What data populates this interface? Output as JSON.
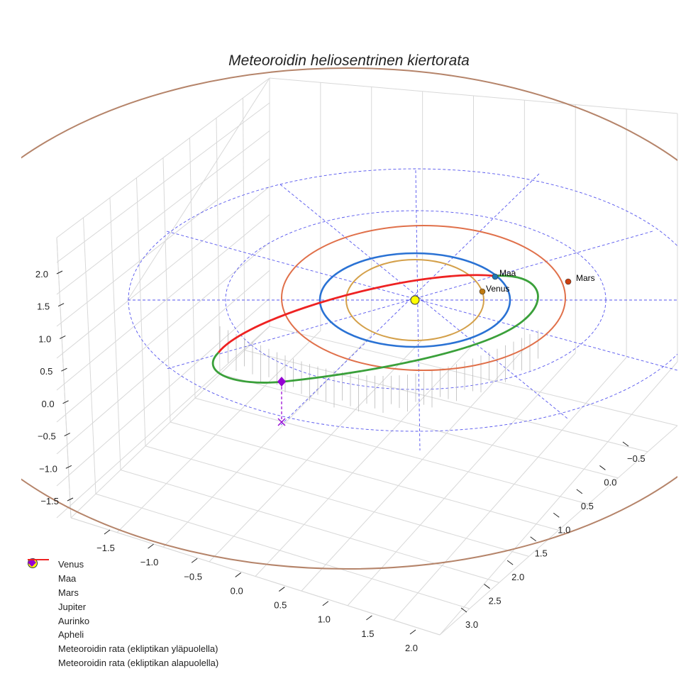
{
  "chart_data": {
    "type": "line3d",
    "title": "Meteoroidin heliosentrinen kiertorata",
    "x_ticks": [
      "−1.5",
      "−1.0",
      "−0.5",
      "0.0",
      "0.5",
      "1.0",
      "1.5",
      "2.0"
    ],
    "y_ticks": [
      "−0.5",
      "0.0",
      "0.5",
      "1.0",
      "1.5",
      "2.0",
      "2.5",
      "3.0"
    ],
    "z_ticks": [
      "2.0",
      "1.5",
      "1.0",
      "0.5",
      "0.0",
      "−0.5",
      "−1.0",
      "−1.5"
    ],
    "xlim": [
      -1.7,
      2.2
    ],
    "ylim": [
      -0.7,
      3.2
    ],
    "zlim": [
      -1.7,
      2.2
    ],
    "grid": true,
    "orbits": [
      {
        "name": "Venus",
        "a_au": 0.72,
        "color": "#d4a04a"
      },
      {
        "name": "Maa",
        "a_au": 1.0,
        "color": "#2a72d4"
      },
      {
        "name": "Mars",
        "a_au": 1.52,
        "color": "#e0704a"
      },
      {
        "name": "Jupiter",
        "a_au": 5.2,
        "color": "#b5846a"
      }
    ],
    "planet_labels": {
      "venus": "Venus",
      "maa": "Maa",
      "mars": "Mars"
    },
    "legend": [
      {
        "label": "Venus",
        "kind": "dot",
        "color": "#c07a10"
      },
      {
        "label": "Maa",
        "kind": "dot",
        "color": "#1f77b4"
      },
      {
        "label": "Mars",
        "kind": "dot",
        "color": "#cc4010"
      },
      {
        "label": "Jupiter",
        "kind": "dot",
        "color": "#a0522d"
      },
      {
        "label": "Aurinko",
        "kind": "sun",
        "color": "#ffff00"
      },
      {
        "label": "Apheli",
        "kind": "diamond",
        "color": "#9400d3"
      },
      {
        "label": "Meteoroidin rata (ekliptikan yläpuolella)",
        "kind": "line",
        "color": "#1a8c1a"
      },
      {
        "label": "Meteoroidin rata (ekliptikan alapuolella)",
        "kind": "line",
        "color": "#ee2222"
      }
    ],
    "legend_position": "bottom-left"
  }
}
